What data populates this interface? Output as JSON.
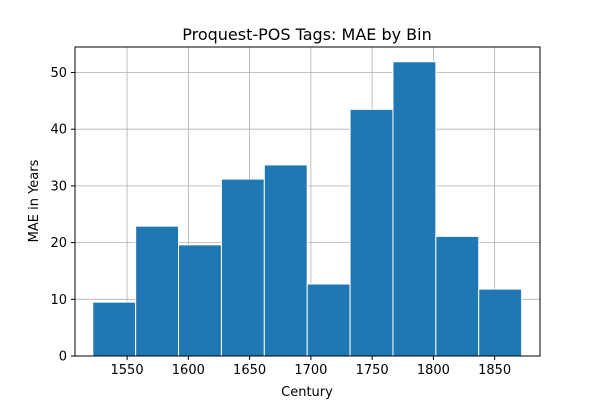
{
  "chart_data": {
    "type": "bar",
    "title": "Proquest-POS Tags: MAE by Bin",
    "xlabel": "Century",
    "ylabel": "MAE in Years",
    "xlim": [
      1507.5,
      1887
    ],
    "ylim": [
      0,
      54.5
    ],
    "grid": true,
    "bar_color": "#1f77b4",
    "xticks": [
      1550,
      1600,
      1650,
      1700,
      1750,
      1800,
      1850
    ],
    "yticks": [
      0,
      10,
      20,
      30,
      40,
      50
    ],
    "bins": [
      {
        "x0": 1522,
        "x1": 1557,
        "value": 9.5
      },
      {
        "x0": 1557,
        "x1": 1592,
        "value": 22.9
      },
      {
        "x0": 1592,
        "x1": 1627,
        "value": 19.6
      },
      {
        "x0": 1627,
        "x1": 1662,
        "value": 31.2
      },
      {
        "x0": 1662,
        "x1": 1697,
        "value": 33.7
      },
      {
        "x0": 1697,
        "x1": 1732,
        "value": 12.7
      },
      {
        "x0": 1732,
        "x1": 1767,
        "value": 43.5
      },
      {
        "x0": 1767,
        "x1": 1802,
        "value": 51.9
      },
      {
        "x0": 1802,
        "x1": 1837,
        "value": 21.1
      },
      {
        "x0": 1837,
        "x1": 1872,
        "value": 11.8
      }
    ]
  }
}
